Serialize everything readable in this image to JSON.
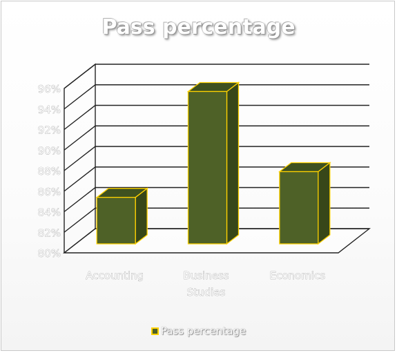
{
  "chart_data": {
    "type": "bar",
    "title": "Pass percentage",
    "categories": [
      "Accounting",
      "Business Studies",
      "Economics"
    ],
    "category_lines": [
      [
        "Accounting"
      ],
      [
        "Business",
        "Studies"
      ],
      [
        "Economics"
      ]
    ],
    "series": [
      {
        "name": "Pass percentage",
        "values": [
          85.4,
          95.7,
          87.9
        ]
      }
    ],
    "ylim": [
      80,
      96
    ],
    "y_ticks": [
      "80%",
      "82%",
      "84%",
      "86%",
      "88%",
      "90%",
      "92%",
      "94%",
      "96%"
    ],
    "grid": true,
    "legend": "bottom",
    "colors": {
      "bar": "#4e6127",
      "bar_side": "#374719",
      "bar_top": "#3e5120",
      "bar_edge": "#ffd200"
    }
  }
}
